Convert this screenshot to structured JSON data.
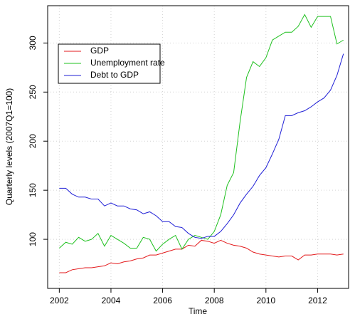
{
  "chart_data": {
    "type": "line",
    "x_label": "Time",
    "y_label": "Quarterly levels (2007Q1=100)",
    "x": [
      2002,
      2002.25,
      2002.5,
      2002.75,
      2003,
      2003.25,
      2003.5,
      2003.75,
      2004,
      2004.25,
      2004.5,
      2004.75,
      2005,
      2005.25,
      2005.5,
      2005.75,
      2006,
      2006.25,
      2006.5,
      2006.75,
      2007,
      2007.25,
      2007.5,
      2007.75,
      2008,
      2008.25,
      2008.5,
      2008.75,
      2009,
      2009.25,
      2009.5,
      2009.75,
      2010,
      2010.25,
      2010.5,
      2010.75,
      2011,
      2011.25,
      2011.5,
      2011.75,
      2012,
      2012.25,
      2012.5,
      2012.75,
      2013
    ],
    "series": [
      {
        "name": "GDP",
        "color": "#e31a1c",
        "values": [
          66,
          66,
          69,
          70,
          71,
          71,
          72,
          73,
          76,
          75,
          77,
          78,
          80,
          81,
          84,
          84,
          86,
          88,
          90,
          90,
          94,
          93,
          99,
          98,
          96,
          99,
          96,
          94,
          93,
          91,
          87,
          85,
          84,
          83,
          82,
          83,
          83,
          79,
          84,
          84,
          85,
          85,
          85,
          84,
          85
        ]
      },
      {
        "name": "Unemployment rate",
        "color": "#1ec01e",
        "values": [
          91,
          97,
          95,
          102,
          98,
          100,
          106,
          93,
          104,
          100,
          96,
          91,
          91,
          102,
          100,
          88,
          95,
          100,
          104,
          90,
          100,
          104,
          102,
          100,
          108,
          125,
          155,
          168,
          220,
          265,
          281,
          276,
          285,
          303,
          307,
          311,
          311,
          317,
          329,
          316,
          327,
          327,
          327,
          299,
          303
        ]
      },
      {
        "name": "Debt to GDP",
        "color": "#1f1fd6",
        "values": [
          152,
          152,
          146,
          143,
          143,
          141,
          141,
          134,
          137,
          134,
          134,
          131,
          130,
          126,
          128,
          124,
          118,
          118,
          113,
          112,
          106,
          102,
          101,
          103,
          103,
          108,
          116,
          125,
          137,
          146,
          154,
          165,
          173,
          187,
          202,
          226,
          226,
          229,
          231,
          235,
          240,
          244,
          252,
          267,
          289
        ]
      }
    ],
    "xlim": [
      2001.55,
      2013.2
    ],
    "ylim": [
      50,
      338
    ],
    "xticks": [
      2002,
      2004,
      2006,
      2008,
      2010,
      2012
    ],
    "yticks": [
      100,
      150,
      200,
      250,
      300
    ],
    "grid": true,
    "legend": "top-left"
  }
}
